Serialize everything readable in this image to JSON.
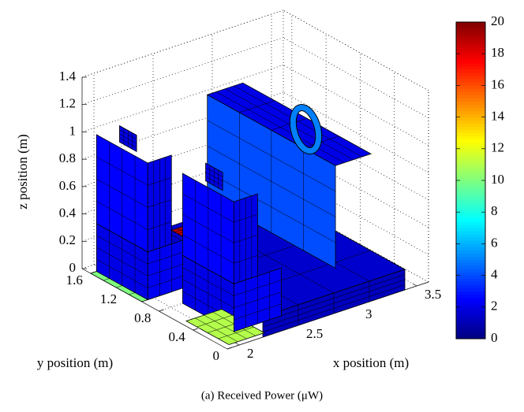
{
  "chart_data": {
    "type": "surface3d",
    "caption": "(a) Received Power (μW)",
    "xlabel": "x position (m)",
    "ylabel": "y position (m)",
    "zlabel": "z position (m)",
    "xlim": [
      1.9,
      3.6
    ],
    "xticks": [
      2,
      2.5,
      3,
      3.5
    ],
    "ylim": [
      0,
      1.7
    ],
    "yticks": [
      0,
      0.4,
      0.8,
      1.2,
      1.6
    ],
    "zlim": [
      0,
      1.4
    ],
    "zticks": [
      0,
      0.2,
      0.4,
      0.6,
      0.8,
      1,
      1.2,
      1.4
    ],
    "clim": [
      0,
      20
    ],
    "cticks": [
      0,
      2,
      4,
      6,
      8,
      10,
      12,
      14,
      16,
      18,
      20
    ],
    "colormap": "jet",
    "grid": true,
    "patches": [
      {
        "x": [
          2.2,
          3.4,
          3.4,
          2.2
        ],
        "y": [
          0,
          0,
          1.6,
          1.6
        ],
        "z": [
          0.15,
          0.15,
          0.15,
          0.15
        ],
        "c": 1.5
      },
      {
        "x": [
          2.2,
          3.4,
          3.4,
          2.2
        ],
        "y": [
          0,
          0,
          0,
          0
        ],
        "z": [
          0,
          0,
          0.15,
          0.15
        ],
        "c": 1.2
      },
      {
        "x": [
          1.9,
          2.15,
          2.15,
          1.9
        ],
        "y": [
          1.0,
          1.0,
          1.6,
          1.6
        ],
        "z": [
          0,
          0,
          0,
          0
        ],
        "c": 10
      },
      {
        "x": [
          1.95,
          2.25,
          2.25,
          1.95
        ],
        "y": [
          0.05,
          0.05,
          0.55,
          0.55
        ],
        "z": [
          0,
          0,
          0,
          0
        ],
        "c": 11
      },
      {
        "x": [
          2.85,
          3.15,
          3.15,
          2.85
        ],
        "y": [
          0.05,
          0.05,
          1.55,
          1.55
        ],
        "z": [
          1.05,
          1.05,
          1.05,
          1.05
        ],
        "c": 2
      },
      {
        "x": [
          2.85,
          2.85,
          2.85,
          2.85
        ],
        "y": [
          0.05,
          1.55,
          1.55,
          0.05
        ],
        "z": [
          0.3,
          0.3,
          1.05,
          1.05
        ],
        "c": 4
      },
      {
        "x": [
          2.3,
          2.8,
          2.8,
          2.3
        ],
        "y": [
          0.9,
          0.9,
          0.9,
          0.9
        ],
        "z": [
          0.15,
          0.15,
          0.4,
          0.4
        ],
        "c": 2
      },
      {
        "x": [
          1.95,
          1.95,
          1.95,
          1.95
        ],
        "y": [
          1.0,
          1.6,
          1.6,
          1.0
        ],
        "z": [
          0,
          0,
          0.35,
          0.35
        ],
        "c": 2
      },
      {
        "x": [
          1.95,
          2.35,
          2.35,
          1.95
        ],
        "y": [
          1.0,
          1.0,
          1.0,
          1.0
        ],
        "z": [
          0,
          0,
          0.35,
          0.35
        ],
        "c": 2.2
      },
      {
        "x": [
          2.15,
          2.35,
          2.35,
          2.15
        ],
        "y": [
          0.85,
          0.85,
          1.0,
          1.0
        ],
        "z": [
          0.45,
          0.45,
          0.45,
          0.45
        ],
        "c": 19
      },
      {
        "x": [
          1.95,
          1.95,
          1.95,
          1.95
        ],
        "y": [
          1.0,
          1.6,
          1.6,
          1.0
        ],
        "z": [
          0.35,
          0.35,
          1.0,
          1.0
        ],
        "c": 2.5
      },
      {
        "x": [
          1.95,
          2.15,
          2.15,
          1.95
        ],
        "y": [
          1.0,
          1.0,
          1.0,
          1.0
        ],
        "z": [
          0.35,
          0.35,
          1.0,
          1.0
        ],
        "c": 2
      },
      {
        "x": [
          2.0,
          2.0,
          2.0,
          2.0
        ],
        "y": [
          1.2,
          1.4,
          1.4,
          1.2
        ],
        "z": [
          1.0,
          1.0,
          1.12,
          1.12
        ],
        "c": 2
      },
      {
        "x": [
          2.1,
          2.1,
          2.1,
          2.1
        ],
        "y": [
          0.2,
          0.8,
          0.8,
          0.2
        ],
        "z": [
          0,
          0,
          0.35,
          0.35
        ],
        "c": 2
      },
      {
        "x": [
          2.1,
          2.5,
          2.5,
          2.1
        ],
        "y": [
          0.2,
          0.2,
          0.2,
          0.2
        ],
        "z": [
          0,
          0,
          0.35,
          0.35
        ],
        "c": 2.2
      },
      {
        "x": [
          2.1,
          2.1,
          2.1,
          2.1
        ],
        "y": [
          0.2,
          0.8,
          0.8,
          0.2
        ],
        "z": [
          0.35,
          0.35,
          0.95,
          0.95
        ],
        "c": 2.5
      },
      {
        "x": [
          2.1,
          2.3,
          2.3,
          2.1
        ],
        "y": [
          0.2,
          0.2,
          0.2,
          0.2
        ],
        "z": [
          0.35,
          0.35,
          0.95,
          0.95
        ],
        "c": 2
      },
      {
        "x": [
          2.15,
          2.15,
          2.15,
          2.15
        ],
        "y": [
          0.4,
          0.6,
          0.6,
          0.4
        ],
        "z": [
          0.95,
          0.95,
          1.08,
          1.08
        ],
        "c": 2
      }
    ],
    "wheel": {
      "center": [
        2.78,
        0.3,
        1.25
      ],
      "radius": 0.15,
      "c": 5
    }
  }
}
